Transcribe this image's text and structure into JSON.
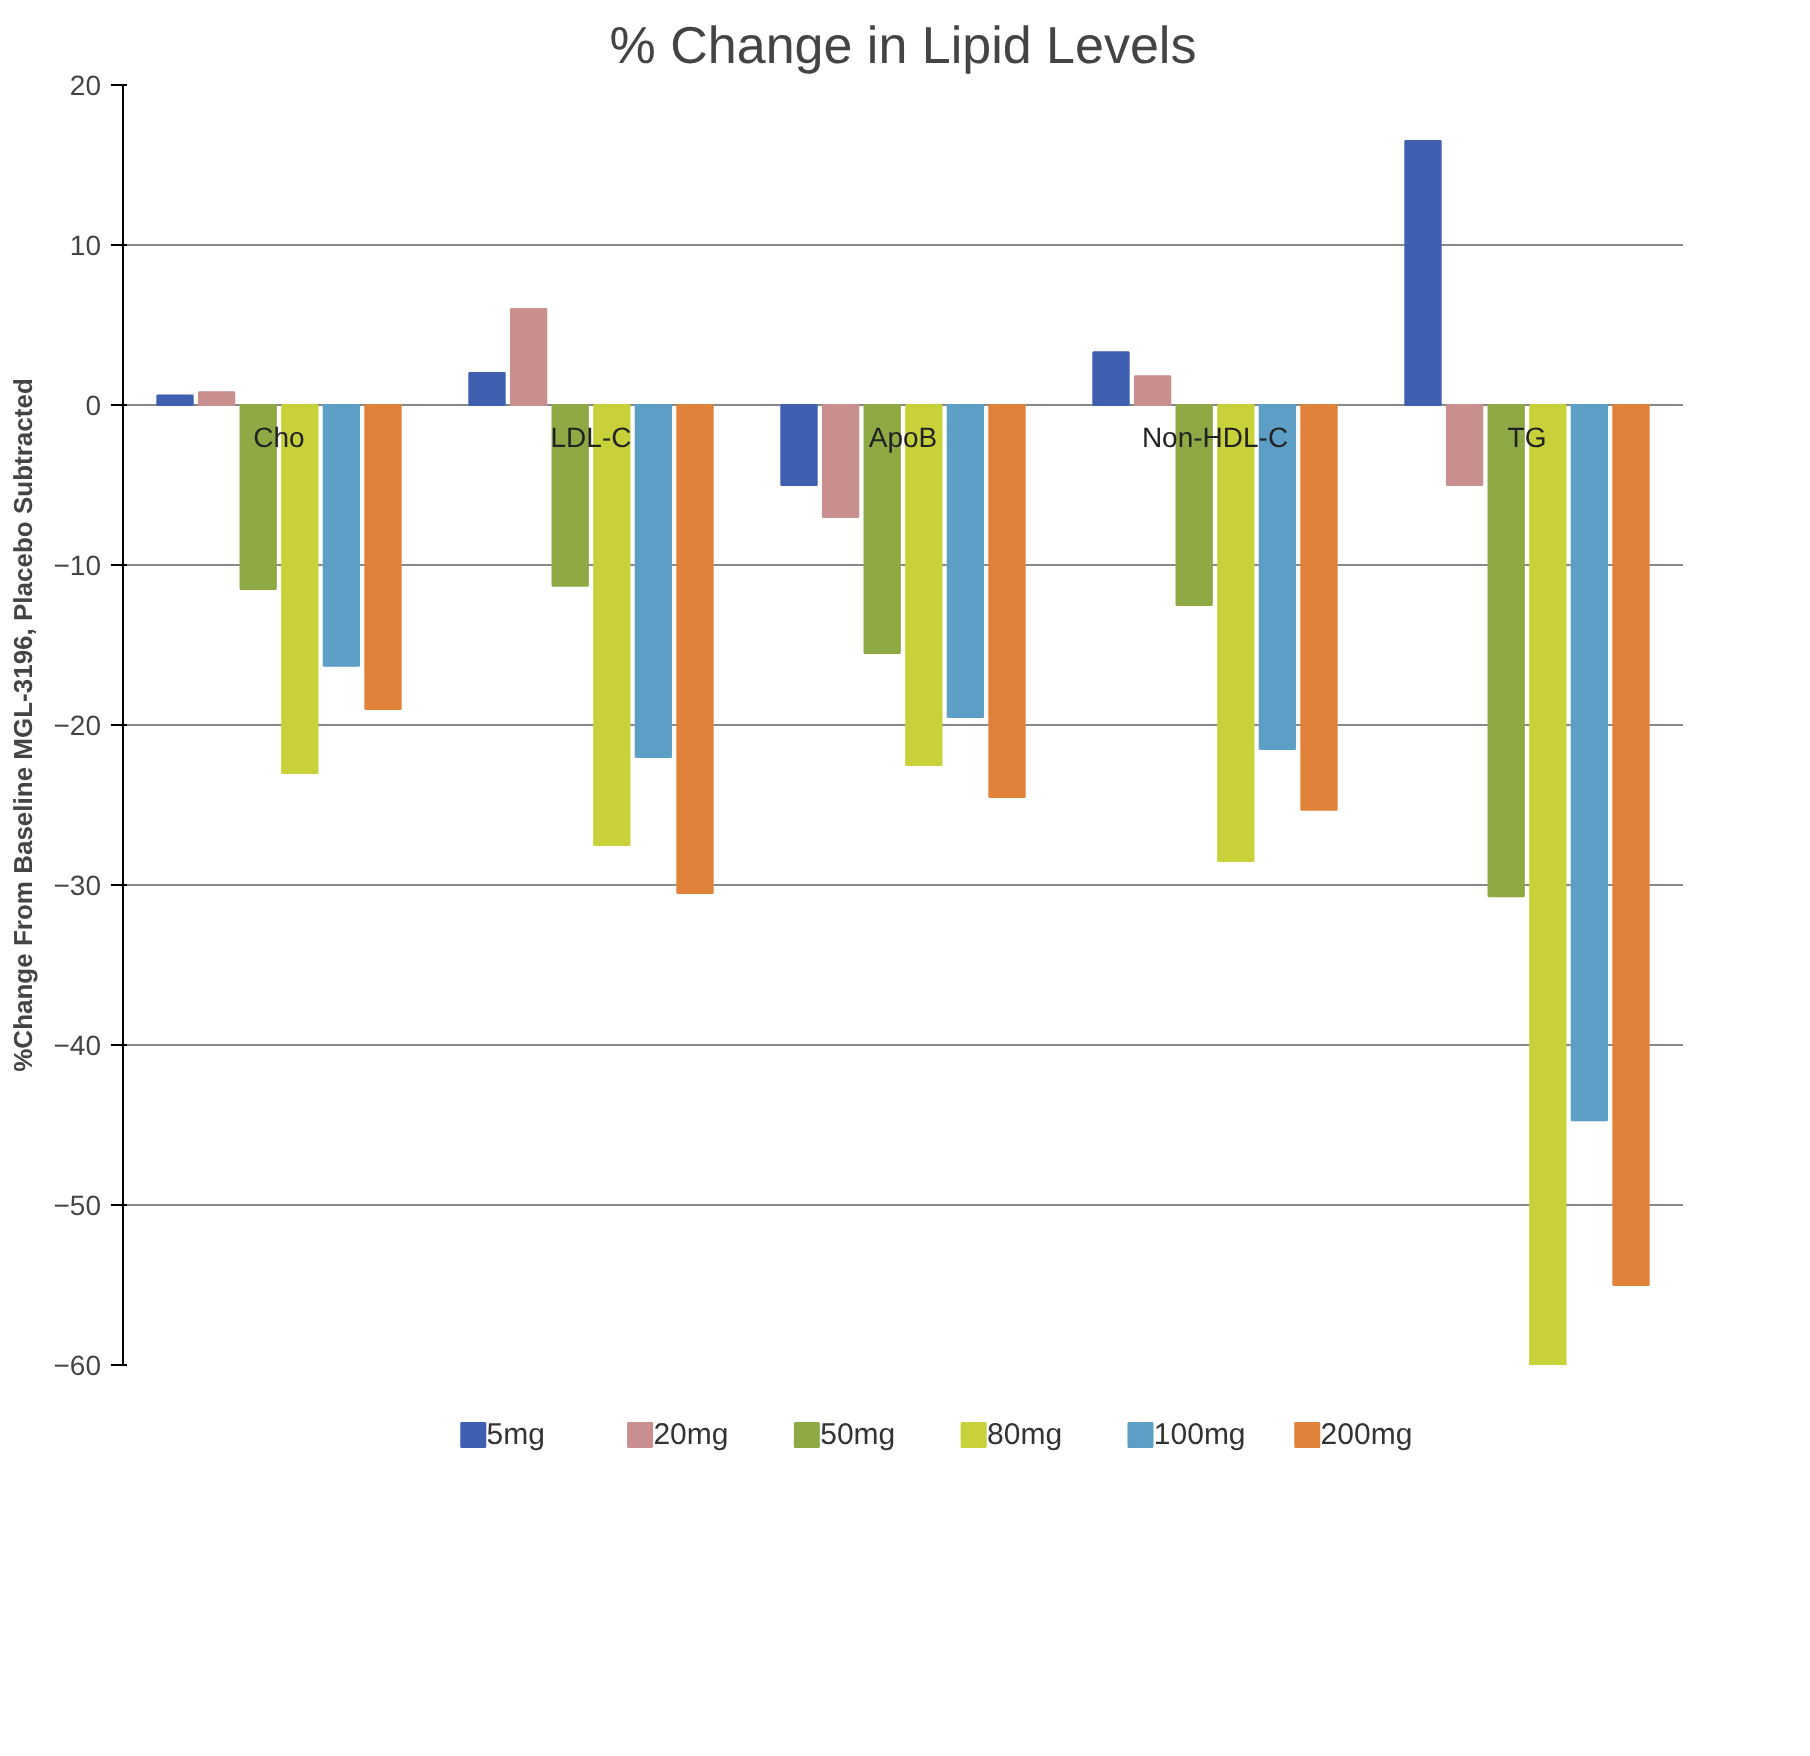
{
  "chart_data": {
    "type": "bar",
    "title": "% Change in Lipid Levels",
    "ylabel": "%Change From Baseline MGL-3196, Placebo Subtracted",
    "categories": [
      "Cho",
      "LDL-C",
      "ApoB",
      "Non-HDL-C",
      "TG"
    ],
    "series": [
      {
        "name": "5mg",
        "color": "#3f5fb0",
        "values": [
          0.6,
          2,
          -5,
          3.3,
          16.5
        ]
      },
      {
        "name": "20mg",
        "color": "#c98f8f",
        "values": [
          0.8,
          6,
          -7,
          1.8,
          -5
        ]
      },
      {
        "name": "50mg",
        "color": "#8faa45",
        "values": [
          -11.5,
          -11.3,
          -15.5,
          -12.5,
          -30.7
        ]
      },
      {
        "name": "80mg",
        "color": "#c8d13a",
        "values": [
          -23,
          -27.5,
          -22.5,
          -28.5,
          -60
        ]
      },
      {
        "name": "100mg",
        "color": "#5c9ec6",
        "values": [
          -16.3,
          -22,
          -19.5,
          -21.5,
          -44.7
        ]
      },
      {
        "name": "200mg",
        "color": "#e0823a",
        "values": [
          -19,
          -30.5,
          -24.5,
          -25.3,
          -55
        ]
      }
    ],
    "ylim": [
      -60,
      20
    ],
    "yticks": [
      -60,
      -50,
      -40,
      -30,
      -20,
      -10,
      0,
      10,
      20
    ],
    "grid": "y",
    "legend": "bottom"
  }
}
